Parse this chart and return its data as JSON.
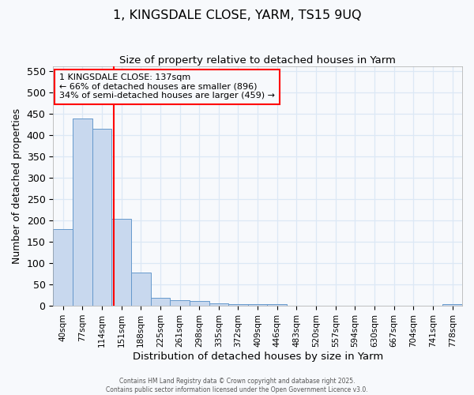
{
  "title1": "1, KINGSDALE CLOSE, YARM, TS15 9UQ",
  "title2": "Size of property relative to detached houses in Yarm",
  "xlabel": "Distribution of detached houses by size in Yarm",
  "ylabel": "Number of detached properties",
  "bar_color": "#c8d8ee",
  "bar_edge_color": "#6699cc",
  "bins": [
    "40sqm",
    "77sqm",
    "114sqm",
    "151sqm",
    "188sqm",
    "225sqm",
    "261sqm",
    "298sqm",
    "335sqm",
    "372sqm",
    "409sqm",
    "446sqm",
    "483sqm",
    "520sqm",
    "557sqm",
    "594sqm",
    "630sqm",
    "667sqm",
    "704sqm",
    "741sqm",
    "778sqm"
  ],
  "values": [
    180,
    438,
    415,
    204,
    78,
    18,
    14,
    12,
    5,
    4,
    3,
    3,
    0,
    0,
    0,
    0,
    0,
    0,
    0,
    0,
    3
  ],
  "ylim": [
    0,
    560
  ],
  "yticks": [
    0,
    50,
    100,
    150,
    200,
    250,
    300,
    350,
    400,
    450,
    500,
    550
  ],
  "red_line_bin_idx": 2.62,
  "annotation_line1": "1 KINGSDALE CLOSE: 137sqm",
  "annotation_line2": "← 66% of detached houses are smaller (896)",
  "annotation_line3": "34% of semi-detached houses are larger (459) →",
  "bg_color": "#f7f9fc",
  "grid_color": "#dce8f5",
  "footer1": "Contains HM Land Registry data © Crown copyright and database right 2025.",
  "footer2": "Contains public sector information licensed under the Open Government Licence v3.0."
}
